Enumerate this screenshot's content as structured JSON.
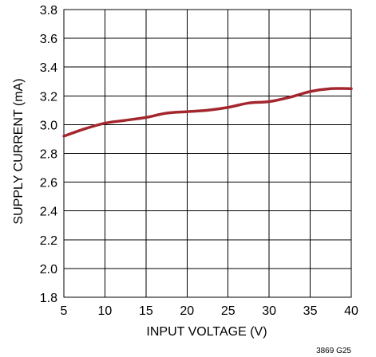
{
  "chart_data": {
    "type": "line",
    "xlabel": "INPUT VOLTAGE (V)",
    "ylabel": "SUPPLY CURRENT (mA)",
    "xlim": [
      5,
      40
    ],
    "ylim": [
      1.8,
      3.8
    ],
    "x_ticks": [
      "5",
      "10",
      "15",
      "20",
      "25",
      "30",
      "35",
      "40"
    ],
    "y_ticks": [
      "1.8",
      "2.0",
      "2.2",
      "2.4",
      "2.6",
      "2.8",
      "3.0",
      "3.2",
      "3.4",
      "3.6",
      "3.8"
    ],
    "grid": true,
    "figure_code": "3869 G25",
    "line_color": "#a3272d",
    "series": [
      {
        "x": [
          5,
          7.5,
          10,
          12.5,
          15,
          17.5,
          20,
          22.5,
          25,
          27.5,
          30,
          32.5,
          35,
          37.5,
          40
        ],
        "y": [
          2.92,
          2.97,
          3.01,
          3.03,
          3.05,
          3.08,
          3.09,
          3.1,
          3.12,
          3.15,
          3.16,
          3.19,
          3.23,
          3.25,
          3.25
        ]
      }
    ]
  }
}
